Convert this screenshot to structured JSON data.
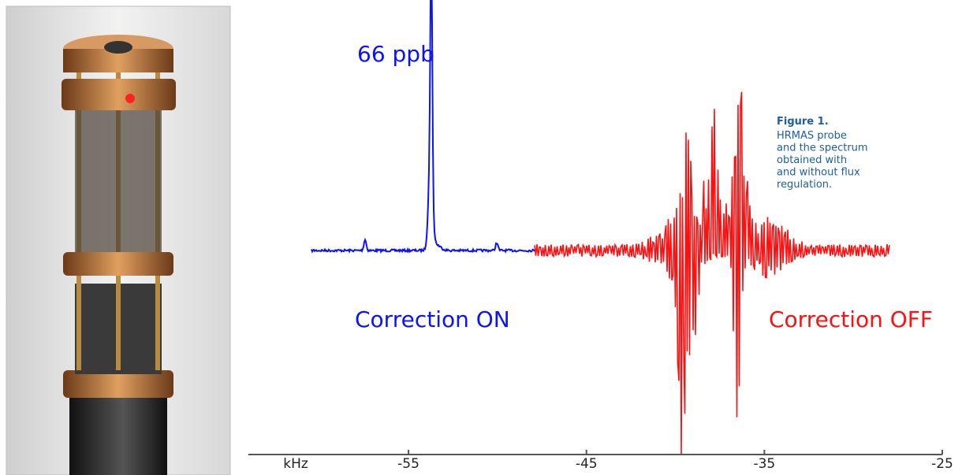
{
  "spectrum": {
    "axis_label": "kHz",
    "xlim": [
      -64,
      -25
    ],
    "xticks": [
      -55,
      -45,
      -35,
      -25
    ],
    "peak_label": "66 ppb",
    "label_on": "Correction ON",
    "label_off": "Correction OFF",
    "color_on": "#0a12ff",
    "color_off": "#ff1010"
  },
  "caption": {
    "title": "Figure 1.",
    "lines": [
      "HRMAS probe",
      "and the spectrum",
      "obtained with",
      "and without flux",
      "regulation."
    ]
  }
}
